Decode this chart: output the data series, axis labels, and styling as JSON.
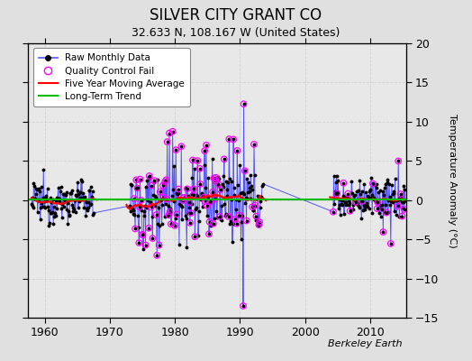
{
  "title": "SILVER CITY GRANT CO",
  "subtitle": "32.633 N, 108.167 W (United States)",
  "ylabel": "Temperature Anomaly (°C)",
  "attribution": "Berkeley Earth",
  "xlim": [
    1957.5,
    2015.5
  ],
  "ylim": [
    -15,
    20
  ],
  "yticks": [
    -15,
    -10,
    -5,
    0,
    5,
    10,
    15,
    20
  ],
  "xticks": [
    1960,
    1970,
    1980,
    1990,
    2000,
    2010
  ],
  "plot_bg_color": "#e8e8e8",
  "outer_bg_color": "#e0e0e0",
  "raw_line_color": "#5555ff",
  "raw_dot_color": "#000000",
  "qc_color": "#ff00ff",
  "ma_color": "#ff0000",
  "trend_color": "#00bb00",
  "grid_color": "#cccccc",
  "legend_labels": [
    "Raw Monthly Data",
    "Quality Control Fail",
    "Five Year Moving Average",
    "Long-Term Trend"
  ],
  "gap1_start": 1967.5,
  "gap1_end": 1973.0,
  "gap2_start": 1993.5,
  "gap2_end": 2004.3
}
